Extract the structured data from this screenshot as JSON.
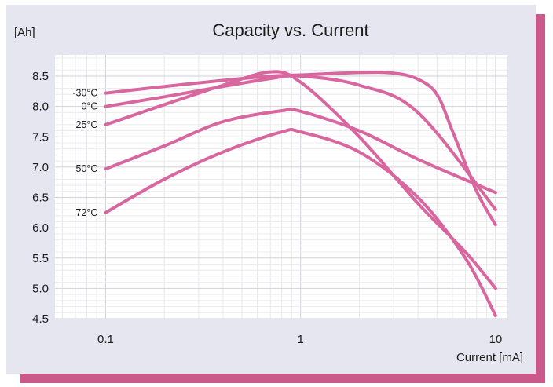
{
  "chart_data": {
    "type": "line",
    "title": "Capacity vs. Current",
    "ylabel": "[Ah]",
    "xlabel": "Current [mA]",
    "x_scale": "log",
    "xlim": [
      0.055,
      11.5
    ],
    "ylim": [
      4.5,
      8.85
    ],
    "x_ticks": [
      "0.1",
      "1",
      "10"
    ],
    "y_ticks": [
      "8.5",
      "8.0",
      "7.5",
      "7.0",
      "6.5",
      "6.0",
      "5.5",
      "5.0",
      "4.5"
    ],
    "grid": true,
    "legend": "inline-left",
    "line_color": "#d9679f",
    "series": [
      {
        "name": "-30°C",
        "x": [
          0.1,
          0.2,
          0.4,
          0.7,
          1.0,
          2.0,
          3.0,
          4.0,
          5.0,
          6.0,
          8.0,
          10.0
        ],
        "y": [
          8.22,
          8.33,
          8.43,
          8.5,
          8.52,
          8.56,
          8.55,
          8.45,
          8.2,
          7.6,
          6.6,
          6.05
        ]
      },
      {
        "name": "0°C",
        "x": [
          0.1,
          0.2,
          0.4,
          0.7,
          1.0,
          2.0,
          4.0,
          10.0
        ],
        "y": [
          8.0,
          8.16,
          8.33,
          8.46,
          8.5,
          8.35,
          7.9,
          6.3
        ]
      },
      {
        "name": "25°C",
        "x": [
          0.1,
          0.2,
          0.4,
          0.7,
          1.0,
          2.0,
          4.0,
          7.0,
          10.0
        ],
        "y": [
          7.7,
          8.03,
          8.35,
          8.57,
          8.4,
          7.5,
          6.4,
          5.6,
          5.0
        ]
      },
      {
        "name": "50°C",
        "x": [
          0.1,
          0.2,
          0.4,
          0.8,
          1.0,
          2.0,
          4.0,
          10.0
        ],
        "y": [
          6.97,
          7.35,
          7.75,
          7.93,
          7.92,
          7.6,
          7.13,
          6.58
        ]
      },
      {
        "name": "72°C",
        "x": [
          0.1,
          0.2,
          0.4,
          0.8,
          1.0,
          2.0,
          4.0,
          7.0,
          10.0
        ],
        "y": [
          6.25,
          6.8,
          7.25,
          7.58,
          7.58,
          7.25,
          6.5,
          5.5,
          4.55
        ]
      }
    ]
  }
}
